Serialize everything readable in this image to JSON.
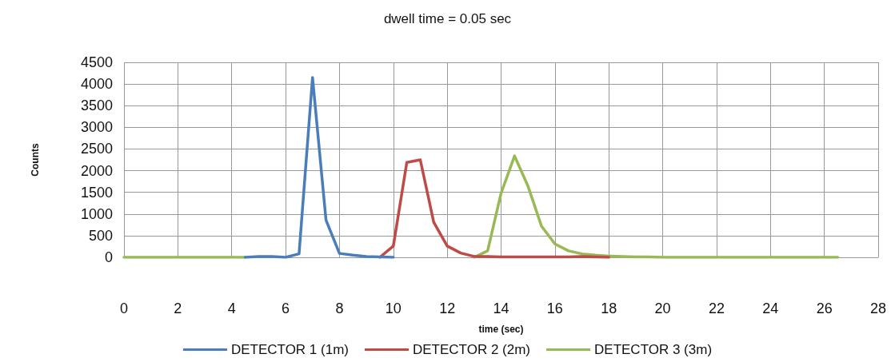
{
  "chart_data": {
    "type": "line",
    "title": "dwell time = 0.05 sec",
    "xlabel": "time (sec)",
    "ylabel": "Counts",
    "x": [
      0,
      0.5,
      1,
      1.5,
      2,
      2.5,
      3,
      3.5,
      4,
      4.5,
      5,
      5.5,
      6,
      6.5,
      7,
      7.5,
      8,
      8.5,
      9,
      9.5,
      10,
      10.5,
      11,
      11.5,
      12,
      12.5,
      13,
      13.5,
      14,
      14.5,
      15,
      15.5,
      16,
      16.5,
      17,
      17.5,
      18,
      18.5,
      19,
      19.5,
      20,
      20.5,
      21,
      21.5,
      22,
      22.5,
      23,
      23.5,
      24,
      24.5,
      25,
      25.5,
      26,
      26.5
    ],
    "series": [
      {
        "name": "DETECTOR 1 (1m)",
        "color": "#4a7ebb",
        "values": [
          null,
          null,
          null,
          null,
          null,
          null,
          null,
          null,
          null,
          0,
          20,
          20,
          0,
          80,
          4150,
          860,
          90,
          50,
          20,
          10,
          0,
          null,
          null,
          null,
          null,
          null,
          null,
          null,
          null,
          null,
          null,
          null,
          null,
          null,
          null,
          null,
          null,
          null,
          null,
          null,
          null,
          null,
          null,
          null,
          null,
          null,
          null,
          null,
          null,
          null,
          null,
          null,
          null,
          null
        ]
      },
      {
        "name": "DETECTOR 2 (2m)",
        "color": "#be4b48",
        "values": [
          null,
          null,
          null,
          null,
          null,
          null,
          null,
          null,
          null,
          null,
          null,
          null,
          null,
          null,
          null,
          null,
          null,
          null,
          null,
          0,
          260,
          2190,
          2250,
          810,
          260,
          100,
          20,
          20,
          10,
          10,
          10,
          10,
          10,
          10,
          20,
          10,
          0,
          null,
          null,
          null,
          null,
          null,
          null,
          null,
          null,
          null,
          null,
          null,
          null,
          null,
          null,
          null,
          null,
          null
        ]
      },
      {
        "name": "DETECTOR 3 (3m)",
        "color": "#98b954",
        "values": [
          0,
          0,
          0,
          0,
          0,
          0,
          0,
          0,
          0,
          0,
          null,
          null,
          null,
          null,
          null,
          null,
          null,
          null,
          null,
          null,
          null,
          null,
          null,
          null,
          null,
          null,
          0,
          150,
          1480,
          2340,
          1640,
          720,
          310,
          150,
          80,
          50,
          30,
          20,
          10,
          10,
          0,
          0,
          0,
          0,
          0,
          0,
          0,
          0,
          0,
          0,
          0,
          0,
          0,
          0
        ]
      }
    ],
    "xlim": [
      0,
      28
    ],
    "xticks": [
      0,
      2,
      4,
      6,
      8,
      10,
      12,
      14,
      16,
      18,
      20,
      22,
      24,
      26,
      28
    ],
    "ylim": [
      0,
      4500
    ],
    "yticks": [
      0,
      500,
      1000,
      1500,
      2000,
      2500,
      3000,
      3500,
      4000,
      4500
    ],
    "grid": true,
    "legend": "bottom",
    "marker": "none",
    "line_style": "solid"
  }
}
